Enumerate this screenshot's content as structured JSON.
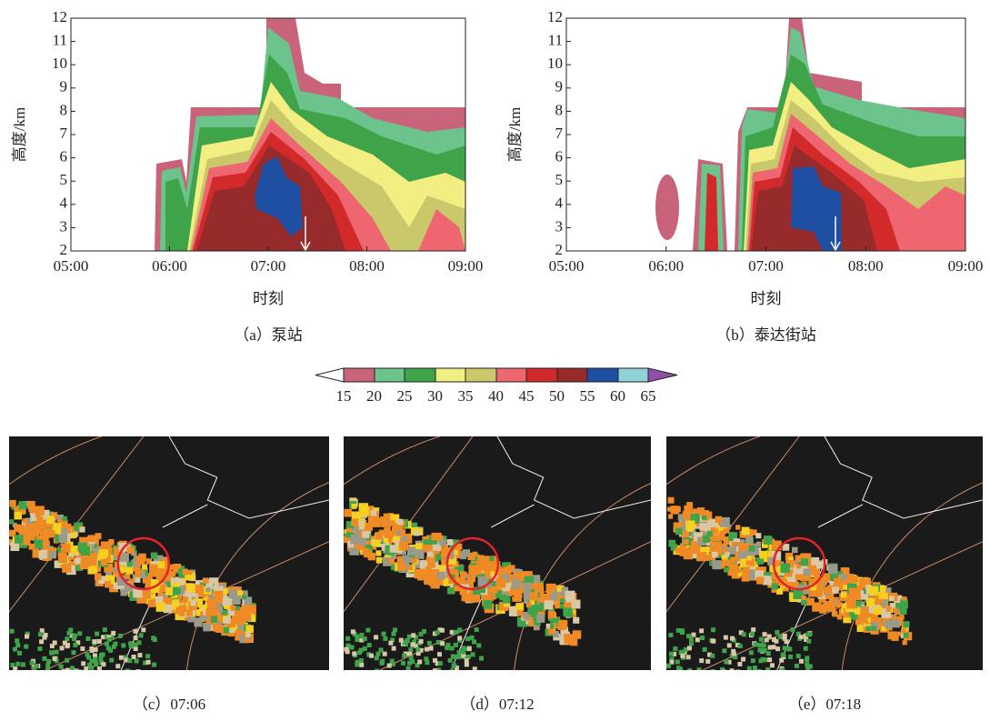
{
  "panels": [
    {
      "caption": "（a）泵站",
      "ylabel": "高度/km",
      "xlabel": "时刻",
      "yticks": [
        2,
        3,
        4,
        5,
        6,
        7,
        8,
        9,
        10,
        11,
        12
      ],
      "xticks": [
        "05:00",
        "06:00",
        "07:00",
        "08:00",
        "09:00"
      ]
    },
    {
      "caption": "（b）泰达街站",
      "ylabel": "高度/km",
      "xlabel": "时刻",
      "yticks": [
        2,
        3,
        4,
        5,
        6,
        7,
        8,
        9,
        10,
        11,
        12
      ],
      "xticks": [
        "05:00",
        "06:00",
        "07:00",
        "08:00",
        "09:00"
      ]
    }
  ],
  "colorbar": {
    "labels": [
      15,
      20,
      25,
      30,
      35,
      40,
      45,
      50,
      55,
      60,
      65
    ]
  },
  "radar": [
    {
      "caption": "（c）07:06"
    },
    {
      "caption": "（d）07:12"
    },
    {
      "caption": "（e）07:18"
    }
  ]
}
